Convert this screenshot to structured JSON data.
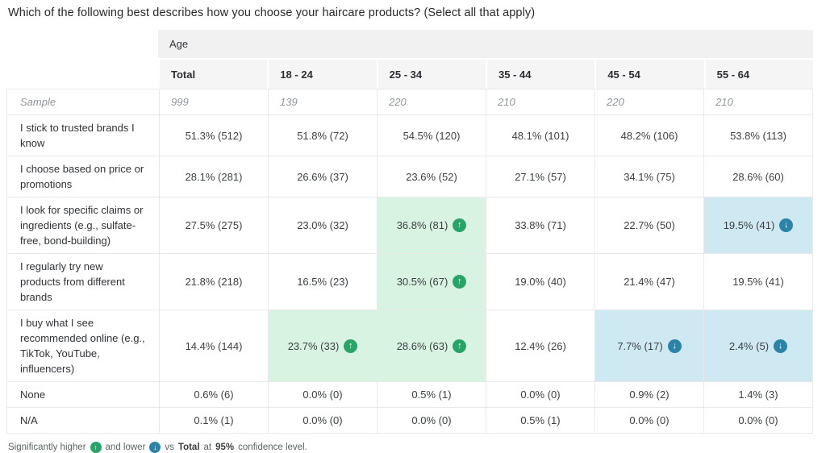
{
  "title": "Which of the following best describes how you choose your haircare products? (Select all that apply)",
  "table": {
    "group_header": "Age",
    "columns": [
      "Total",
      "18 - 24",
      "25 - 34",
      "35 - 44",
      "45 - 54",
      "55 - 64"
    ],
    "sample": {
      "label": "Sample",
      "values": [
        "999",
        "139",
        "220",
        "210",
        "220",
        "210"
      ]
    },
    "rows": [
      {
        "label": "I stick to trusted brands I know",
        "cells": [
          {
            "v": "51.3% (512)"
          },
          {
            "v": "51.8% (72)"
          },
          {
            "v": "54.5% (120)"
          },
          {
            "v": "48.1% (101)"
          },
          {
            "v": "48.2% (106)"
          },
          {
            "v": "53.8% (113)"
          }
        ]
      },
      {
        "label": "I choose based on price or promotions",
        "cells": [
          {
            "v": "28.1% (281)"
          },
          {
            "v": "26.6% (37)"
          },
          {
            "v": "23.6% (52)"
          },
          {
            "v": "27.1% (57)"
          },
          {
            "v": "34.1% (75)"
          },
          {
            "v": "28.6% (60)"
          }
        ]
      },
      {
        "label": "I look for specific claims or ingredients (e.g., sulfate-free, bond-building)",
        "cells": [
          {
            "v": "27.5% (275)"
          },
          {
            "v": "23.0% (32)"
          },
          {
            "v": "36.8% (81)",
            "sig": "up"
          },
          {
            "v": "33.8% (71)"
          },
          {
            "v": "22.7% (50)"
          },
          {
            "v": "19.5% (41)",
            "sig": "down"
          }
        ]
      },
      {
        "label": "I regularly try new products from different brands",
        "cells": [
          {
            "v": "21.8% (218)"
          },
          {
            "v": "16.5% (23)"
          },
          {
            "v": "30.5% (67)",
            "sig": "up"
          },
          {
            "v": "19.0% (40)"
          },
          {
            "v": "21.4% (47)"
          },
          {
            "v": "19.5% (41)"
          }
        ]
      },
      {
        "label": "I buy what I see recommended online (e.g., TikTok, YouTube, influencers)",
        "cells": [
          {
            "v": "14.4% (144)"
          },
          {
            "v": "23.7% (33)",
            "sig": "up"
          },
          {
            "v": "28.6% (63)",
            "sig": "up"
          },
          {
            "v": "12.4% (26)"
          },
          {
            "v": "7.7% (17)",
            "sig": "down"
          },
          {
            "v": "2.4% (5)",
            "sig": "down"
          }
        ]
      },
      {
        "label": "None",
        "cells": [
          {
            "v": "0.6% (6)"
          },
          {
            "v": "0.0% (0)"
          },
          {
            "v": "0.5% (1)"
          },
          {
            "v": "0.0% (0)"
          },
          {
            "v": "0.9% (2)"
          },
          {
            "v": "1.4% (3)"
          }
        ]
      },
      {
        "label": "N/A",
        "cells": [
          {
            "v": "0.1% (1)"
          },
          {
            "v": "0.0% (0)"
          },
          {
            "v": "0.0% (0)"
          },
          {
            "v": "0.5% (1)"
          },
          {
            "v": "0.0% (0)"
          },
          {
            "v": "0.0% (0)"
          }
        ]
      }
    ]
  },
  "footnote": {
    "prefix": "Significantly higher",
    "mid": "and lower",
    "vs": "vs",
    "total_label": "Total",
    "at": "at",
    "confidence": "95%",
    "suffix": "confidence level."
  },
  "icons": {
    "up": "↑",
    "down": "↓"
  },
  "colors": {
    "sig_higher_bg": "#d9f3e3",
    "sig_higher_icon": "#27a567",
    "sig_lower_bg": "#cfe9f3",
    "sig_lower_icon": "#2b84a8",
    "header_bg": "#f5f5f6",
    "banner_bg": "#f1f1f2",
    "border": "#e9e9eb"
  },
  "chart_data": {
    "type": "table",
    "title": "Which of the following best describes how you choose your haircare products? (Select all that apply)",
    "column_group": "Age",
    "columns": [
      "Total",
      "18 - 24",
      "25 - 34",
      "35 - 44",
      "45 - 54",
      "55 - 64"
    ],
    "sample_sizes": [
      999,
      139,
      220,
      210,
      220,
      210
    ],
    "rows": [
      {
        "label": "I stick to trusted brands I know",
        "percent": [
          51.3,
          51.8,
          54.5,
          48.1,
          48.2,
          53.8
        ],
        "counts": [
          512,
          72,
          120,
          101,
          106,
          113
        ],
        "significance": [
          null,
          null,
          null,
          null,
          null,
          null
        ]
      },
      {
        "label": "I choose based on price or promotions",
        "percent": [
          28.1,
          26.6,
          23.6,
          27.1,
          34.1,
          28.6
        ],
        "counts": [
          281,
          37,
          52,
          57,
          75,
          60
        ],
        "significance": [
          null,
          null,
          null,
          null,
          null,
          null
        ]
      },
      {
        "label": "I look for specific claims or ingredients (e.g., sulfate-free, bond-building)",
        "percent": [
          27.5,
          23.0,
          36.8,
          33.8,
          22.7,
          19.5
        ],
        "counts": [
          275,
          32,
          81,
          71,
          50,
          41
        ],
        "significance": [
          null,
          null,
          "higher",
          null,
          null,
          "lower"
        ]
      },
      {
        "label": "I regularly try new products from different brands",
        "percent": [
          21.8,
          16.5,
          30.5,
          19.0,
          21.4,
          19.5
        ],
        "counts": [
          218,
          23,
          67,
          40,
          47,
          41
        ],
        "significance": [
          null,
          null,
          "higher",
          null,
          null,
          null
        ]
      },
      {
        "label": "I buy what I see recommended online (e.g., TikTok, YouTube, influencers)",
        "percent": [
          14.4,
          23.7,
          28.6,
          12.4,
          7.7,
          2.4
        ],
        "counts": [
          144,
          33,
          63,
          26,
          17,
          5
        ],
        "significance": [
          null,
          "higher",
          "higher",
          null,
          "lower",
          "lower"
        ]
      },
      {
        "label": "None",
        "percent": [
          0.6,
          0.0,
          0.5,
          0.0,
          0.9,
          1.4
        ],
        "counts": [
          6,
          0,
          1,
          0,
          2,
          3
        ],
        "significance": [
          null,
          null,
          null,
          null,
          null,
          null
        ]
      },
      {
        "label": "N/A",
        "percent": [
          0.1,
          0.0,
          0.0,
          0.5,
          0.0,
          0.0
        ],
        "counts": [
          1,
          0,
          0,
          1,
          0,
          0
        ],
        "significance": [
          null,
          null,
          null,
          null,
          null,
          null
        ]
      }
    ],
    "note": "Significantly higher and lower vs Total at 95% confidence level."
  }
}
